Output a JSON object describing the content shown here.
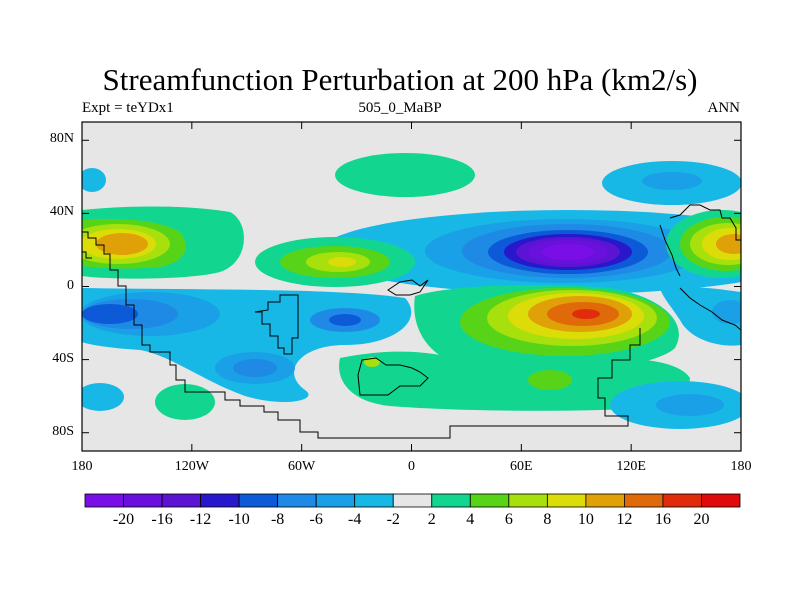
{
  "figure": {
    "title": "Streamfunction Perturbation at 200 hPa (km2/s)",
    "left_label": "Expt = teYDx1",
    "center_label": "505_0_MaBP",
    "right_label": "ANN"
  },
  "axes": {
    "y_ticks": [
      {
        "value": 80,
        "label": "80N"
      },
      {
        "value": 40,
        "label": "40N"
      },
      {
        "value": 0,
        "label": "0"
      },
      {
        "value": -40,
        "label": "40S"
      },
      {
        "value": -80,
        "label": "80S"
      }
    ],
    "x_ticks": [
      {
        "value": -180,
        "label": "180"
      },
      {
        "value": -120,
        "label": "120W"
      },
      {
        "value": -60,
        "label": "60W"
      },
      {
        "value": 0,
        "label": "0"
      },
      {
        "value": 60,
        "label": "60E"
      },
      {
        "value": 120,
        "label": "120E"
      },
      {
        "value": 180,
        "label": "180"
      }
    ],
    "lon_range": [
      -180,
      180
    ],
    "lat_range": [
      -90,
      90
    ]
  },
  "colorbar": {
    "colors": [
      "#7a0ee6",
      "#6a10dd",
      "#5a14d2",
      "#2818cc",
      "#0c5ad8",
      "#1f8ae6",
      "#1aa0e6",
      "#18b8e6",
      "#e6e6e6",
      "#12d690",
      "#58d418",
      "#a8e00e",
      "#dcdc08",
      "#e0a008",
      "#e06a0a",
      "#e02c0a",
      "#e00a0a"
    ],
    "labels": [
      "-20",
      "-16",
      "-12",
      "-10",
      "-8",
      "-6",
      "-4",
      "-2",
      "2",
      "4",
      "6",
      "8",
      "10",
      "12",
      "16",
      "20"
    ]
  },
  "chart_data": {
    "type": "contour-map",
    "title": "Streamfunction Perturbation at 200 hPa (km2/s)",
    "variable": "streamfunction perturbation",
    "units": "km2/s",
    "level": "200 hPa",
    "experiment": "teYDx1",
    "case": "505_0_MaBP",
    "season": "ANN",
    "x_range": [
      -180,
      180
    ],
    "y_range": [
      -90,
      90
    ],
    "features": [
      {
        "lon": 90,
        "lat": 20,
        "extreme": -20,
        "kind": "minimum"
      },
      {
        "lon": 90,
        "lat": -15,
        "extreme": 16,
        "kind": "maximum"
      },
      {
        "lon": -160,
        "lat": 22,
        "extreme": 10,
        "kind": "maximum"
      },
      {
        "lon": 170,
        "lat": 22,
        "extreme": 10,
        "kind": "maximum"
      },
      {
        "lon": -35,
        "lat": 15,
        "extreme": 10,
        "kind": "maximum"
      },
      {
        "lon": -170,
        "lat": -15,
        "extreme": -8,
        "kind": "minimum"
      },
      {
        "lon": -35,
        "lat": -20,
        "extreme": -8,
        "kind": "minimum"
      }
    ]
  }
}
